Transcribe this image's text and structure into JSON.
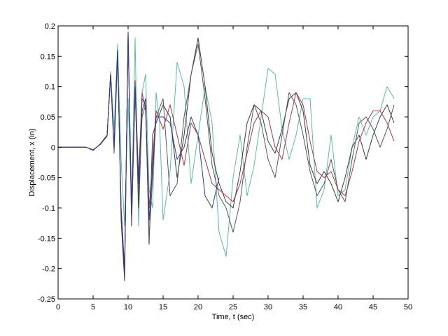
{
  "chart_data": {
    "type": "line",
    "title": "",
    "xlabel": "Time, t (sec)",
    "ylabel": "Displacement, x (in)",
    "xlim": [
      0,
      50
    ],
    "ylim": [
      -0.25,
      0.2
    ],
    "xticks": [
      0,
      5,
      10,
      15,
      20,
      25,
      30,
      35,
      40,
      45,
      50
    ],
    "yticks": [
      -0.25,
      -0.2,
      -0.15,
      -0.1,
      -0.05,
      0,
      0.05,
      0.1,
      0.15,
      0.2
    ],
    "xtick_labels": [
      "0",
      "5",
      "10",
      "15",
      "20",
      "25",
      "30",
      "35",
      "40",
      "45",
      "50"
    ],
    "ytick_labels": [
      "-0.25",
      "-0.2",
      "-0.15",
      "-0.1",
      "-0.05",
      "0",
      "0.05",
      "0.1",
      "0.15",
      "0.2"
    ],
    "grid": false,
    "legend": "none",
    "series": [
      {
        "color": "#5fb8a8",
        "x": [
          0,
          4,
          5,
          6,
          7,
          7.5,
          8,
          8.5,
          9,
          9.5,
          10,
          10.5,
          11,
          11.5,
          12,
          12.5,
          13,
          13.5,
          14,
          14.5,
          15,
          16,
          17,
          18,
          19,
          20,
          21,
          22,
          23,
          24,
          25,
          26,
          27,
          28,
          29,
          30,
          31,
          32,
          33,
          34,
          35,
          36,
          37,
          38,
          39,
          40,
          41,
          42,
          43,
          44,
          45,
          46,
          47,
          48
        ],
        "y": [
          0,
          0,
          -0.005,
          0.005,
          0.02,
          0.125,
          0.03,
          0.17,
          -0.02,
          -0.13,
          0.08,
          -0.1,
          0.18,
          -0.13,
          0.09,
          0.12,
          -0.07,
          -0.1,
          0.09,
          0.04,
          -0.12,
          -0.04,
          0.14,
          0.1,
          -0.06,
          0.02,
          0.1,
          0.04,
          -0.14,
          -0.18,
          -0.05,
          0.02,
          -0.08,
          -0.03,
          0.05,
          0.13,
          0.12,
          0.03,
          -0.02,
          0.02,
          0.08,
          0.08,
          -0.1,
          -0.07,
          0.02,
          -0.08,
          -0.07,
          0.0,
          0.05,
          0.02,
          0.05,
          0.06,
          0.1,
          0.08
        ]
      },
      {
        "color": "#3a3a3a",
        "x": [
          0,
          4,
          5,
          6,
          7,
          7.5,
          8,
          8.5,
          9,
          9.5,
          10,
          10.5,
          11,
          11.5,
          12,
          12.5,
          13,
          13.5,
          14,
          15,
          16,
          17,
          18,
          19,
          20,
          21,
          22,
          23,
          24,
          25,
          26,
          27,
          28,
          29,
          30,
          31,
          32,
          33,
          34,
          35,
          36,
          37,
          38,
          39,
          40,
          41,
          42,
          43,
          44,
          45,
          46,
          47,
          48
        ],
        "y": [
          0,
          0,
          -0.005,
          0.005,
          0.02,
          0.12,
          0.0,
          0.16,
          -0.12,
          -0.22,
          0.19,
          -0.13,
          0.1,
          -0.1,
          0.06,
          0.08,
          -0.16,
          0.02,
          0.04,
          0.07,
          0.05,
          -0.05,
          0.02,
          0.12,
          0.18,
          0.1,
          -0.01,
          -0.06,
          -0.09,
          -0.1,
          -0.04,
          0.04,
          0.07,
          0.06,
          0.01,
          -0.01,
          0.03,
          0.08,
          0.09,
          0.06,
          -0.03,
          -0.06,
          -0.04,
          -0.06,
          -0.09,
          -0.05,
          0.0,
          0.02,
          -0.02,
          0.02,
          0.05,
          0.07,
          0.04
        ]
      },
      {
        "color": "#555555",
        "x": [
          0,
          4,
          5,
          6,
          7,
          7.5,
          8,
          8.5,
          9,
          9.5,
          10,
          10.5,
          11,
          11.5,
          12,
          12.5,
          13,
          14,
          15,
          16,
          17,
          18,
          19,
          20,
          21,
          22,
          23,
          24,
          25,
          26,
          27,
          28,
          29,
          30,
          31,
          32,
          33,
          34,
          35,
          36,
          37,
          38,
          39,
          40,
          41,
          42,
          43,
          44,
          45,
          46,
          47,
          48
        ],
        "y": [
          0,
          0,
          -0.004,
          0.004,
          0.018,
          0.118,
          -0.01,
          0.15,
          -0.1,
          -0.2,
          0.18,
          -0.12,
          0.09,
          -0.08,
          0.05,
          0.07,
          -0.15,
          0.05,
          0.08,
          -0.08,
          -0.06,
          0.05,
          0.12,
          0.17,
          0.08,
          -0.03,
          -0.08,
          -0.1,
          -0.14,
          -0.09,
          0.0,
          0.07,
          0.04,
          -0.02,
          -0.05,
          0.02,
          0.09,
          0.07,
          0.02,
          -0.04,
          -0.08,
          -0.06,
          -0.02,
          -0.07,
          -0.09,
          -0.02,
          0.04,
          0.05,
          0.03,
          0.0,
          0.03,
          0.07
        ]
      },
      {
        "color": "#a03a4a",
        "x": [
          0,
          4,
          5,
          6,
          7,
          7.5,
          8,
          8.5,
          9,
          9.5,
          10,
          10.5,
          11,
          11.5,
          12,
          12.5,
          13,
          14,
          15,
          16,
          17,
          18,
          19,
          20,
          21,
          22,
          23,
          24,
          25,
          26,
          27,
          28,
          29,
          30,
          31,
          32,
          33,
          34,
          35,
          36,
          37,
          38,
          39,
          40,
          41,
          42,
          43,
          44,
          45,
          46,
          47,
          48
        ],
        "y": [
          0,
          0,
          -0.005,
          0.005,
          0.02,
          0.12,
          0.0,
          0.16,
          -0.1,
          -0.2,
          0.18,
          -0.1,
          0.11,
          -0.05,
          0.09,
          0.06,
          -0.1,
          0.06,
          0.03,
          0.07,
          0.02,
          -0.03,
          0.04,
          0.02,
          -0.02,
          -0.06,
          -0.07,
          -0.08,
          -0.09,
          -0.06,
          -0.01,
          0.04,
          0.06,
          0.05,
          0.0,
          -0.02,
          0.04,
          0.09,
          0.07,
          0.01,
          -0.04,
          -0.05,
          -0.04,
          -0.07,
          -0.08,
          -0.04,
          0.01,
          0.04,
          0.06,
          0.06,
          0.04,
          0.01
        ]
      },
      {
        "color": "#2a3a8a",
        "x": [
          0,
          4,
          5,
          6,
          7,
          7.5,
          8,
          8.5,
          9,
          9.5,
          10,
          10.5,
          11,
          11.5,
          12,
          12.5,
          13,
          14,
          15,
          16,
          17,
          18,
          19,
          20,
          21,
          22,
          23
        ],
        "y": [
          0,
          0,
          -0.005,
          0.005,
          0.02,
          0.12,
          0.0,
          0.16,
          -0.1,
          -0.21,
          0.19,
          -0.11,
          0.1,
          -0.06,
          0.08,
          0.07,
          -0.12,
          0.05,
          0.05,
          0.04,
          -0.02,
          0.0,
          0.05,
          0.02,
          -0.08,
          -0.1,
          -0.05
        ]
      }
    ]
  }
}
